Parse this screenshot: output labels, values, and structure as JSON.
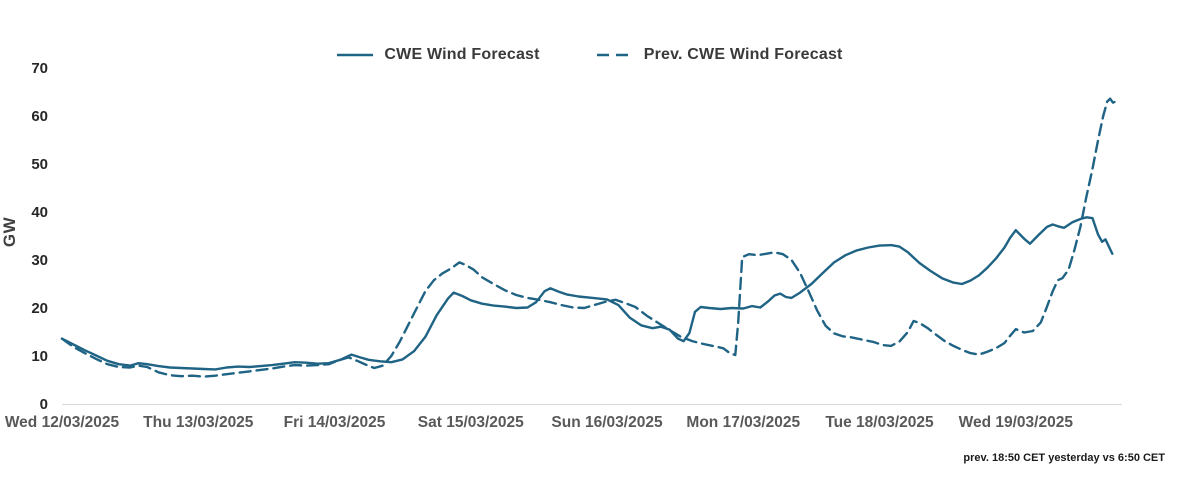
{
  "page": {
    "background": "#ffffff",
    "accent_line_color": "#1f6385"
  },
  "footer": {
    "note": "prev. 18:50 CET yesterday vs  6:50 CET"
  },
  "chart_data": {
    "type": "line",
    "title": "",
    "xlabel": "",
    "ylabel": "GW",
    "ylim": [
      0,
      70
    ],
    "yticks": [
      0,
      10,
      20,
      30,
      40,
      50,
      60,
      70
    ],
    "grid": false,
    "legend_position": "top-center",
    "x_unit": "hours from Wed 12/03/2025 00:00",
    "xlim": [
      0,
      186
    ],
    "x_tick_hours": [
      0,
      24,
      48,
      72,
      96,
      120,
      144,
      168
    ],
    "x_tick_labels": [
      "Wed 12/03/2025",
      "Thu 13/03/2025",
      "Fri 14/03/2025",
      "Sat 15/03/2025",
      "Sun 16/03/2025",
      "Mon 17/03/2025",
      "Tue 18/03/2025",
      "Wed 19/03/2025"
    ],
    "series": [
      {
        "id": "cwe-wind-forecast",
        "name": "CWE Wind Forecast",
        "style": "solid",
        "color": "#1f6385",
        "points": [
          [
            0,
            13.6
          ],
          [
            2,
            12.4
          ],
          [
            4,
            11.2
          ],
          [
            6,
            10.1
          ],
          [
            8,
            9.0
          ],
          [
            10,
            8.3
          ],
          [
            12,
            8.0
          ],
          [
            13.5,
            8.5
          ],
          [
            15,
            8.3
          ],
          [
            17,
            7.9
          ],
          [
            19,
            7.6
          ],
          [
            21,
            7.5
          ],
          [
            23,
            7.4
          ],
          [
            25,
            7.3
          ],
          [
            27,
            7.2
          ],
          [
            29,
            7.6
          ],
          [
            31,
            7.8
          ],
          [
            33,
            7.7
          ],
          [
            35,
            7.9
          ],
          [
            37,
            8.1
          ],
          [
            39,
            8.4
          ],
          [
            41,
            8.7
          ],
          [
            43,
            8.6
          ],
          [
            45,
            8.4
          ],
          [
            47,
            8.5
          ],
          [
            49,
            9.2
          ],
          [
            51,
            10.3
          ],
          [
            52.5,
            9.7
          ],
          [
            54,
            9.2
          ],
          [
            56,
            8.9
          ],
          [
            58,
            8.7
          ],
          [
            60,
            9.3
          ],
          [
            62,
            11.0
          ],
          [
            64,
            14.0
          ],
          [
            66,
            18.5
          ],
          [
            68,
            22.0
          ],
          [
            69,
            23.2
          ],
          [
            70.5,
            22.5
          ],
          [
            72,
            21.6
          ],
          [
            74,
            20.9
          ],
          [
            76,
            20.5
          ],
          [
            78,
            20.3
          ],
          [
            80,
            20.0
          ],
          [
            82,
            20.1
          ],
          [
            83.5,
            21.2
          ],
          [
            85,
            23.5
          ],
          [
            86,
            24.1
          ],
          [
            87.5,
            23.4
          ],
          [
            89,
            22.8
          ],
          [
            91,
            22.4
          ],
          [
            93.5,
            22.1
          ],
          [
            96,
            21.8
          ],
          [
            98,
            20.6
          ],
          [
            100,
            18.0
          ],
          [
            102,
            16.4
          ],
          [
            104,
            15.8
          ],
          [
            105.5,
            16.1
          ],
          [
            107,
            15.5
          ],
          [
            108.5,
            13.6
          ],
          [
            109.5,
            13.1
          ],
          [
            110.5,
            14.8
          ],
          [
            111.5,
            19.2
          ],
          [
            112.5,
            20.2
          ],
          [
            114,
            20.0
          ],
          [
            116,
            19.8
          ],
          [
            118,
            20.0
          ],
          [
            120,
            19.9
          ],
          [
            121.5,
            20.4
          ],
          [
            123,
            20.1
          ],
          [
            124.5,
            21.5
          ],
          [
            125.5,
            22.6
          ],
          [
            126.5,
            23.0
          ],
          [
            127.5,
            22.3
          ],
          [
            128.5,
            22.1
          ],
          [
            130,
            23.2
          ],
          [
            132,
            25.0
          ],
          [
            134,
            27.3
          ],
          [
            136,
            29.5
          ],
          [
            138,
            31.0
          ],
          [
            140,
            32.0
          ],
          [
            142,
            32.6
          ],
          [
            144,
            33.0
          ],
          [
            146,
            33.1
          ],
          [
            147.5,
            32.8
          ],
          [
            149,
            31.6
          ],
          [
            151,
            29.4
          ],
          [
            153,
            27.7
          ],
          [
            155,
            26.2
          ],
          [
            157,
            25.3
          ],
          [
            158.5,
            25.0
          ],
          [
            160,
            25.7
          ],
          [
            161.5,
            26.8
          ],
          [
            163,
            28.4
          ],
          [
            164.5,
            30.3
          ],
          [
            166,
            32.6
          ],
          [
            167,
            34.6
          ],
          [
            168,
            36.2
          ],
          [
            169.5,
            34.4
          ],
          [
            170.5,
            33.4
          ],
          [
            172,
            35.2
          ],
          [
            173.5,
            36.9
          ],
          [
            174.5,
            37.4
          ],
          [
            175.5,
            37.0
          ],
          [
            176.5,
            36.7
          ],
          [
            178,
            37.9
          ],
          [
            179.5,
            38.6
          ],
          [
            180.5,
            38.9
          ],
          [
            181.5,
            38.7
          ],
          [
            182.5,
            35.3
          ],
          [
            183.2,
            33.8
          ],
          [
            183.8,
            34.3
          ],
          [
            184.4,
            32.8
          ],
          [
            185,
            31.3
          ]
        ]
      },
      {
        "id": "prev-cwe-wind-forecast",
        "name": "Prev. CWE Wind Forecast",
        "style": "dashed",
        "color": "#1f6385",
        "points": [
          [
            0,
            13.6
          ],
          [
            2,
            11.9
          ],
          [
            4,
            10.6
          ],
          [
            6,
            9.4
          ],
          [
            8,
            8.3
          ],
          [
            10,
            7.7
          ],
          [
            12,
            7.6
          ],
          [
            13.5,
            8.0
          ],
          [
            15,
            7.7
          ],
          [
            17,
            6.6
          ],
          [
            19,
            6.0
          ],
          [
            21,
            5.8
          ],
          [
            23,
            5.9
          ],
          [
            25,
            5.7
          ],
          [
            27,
            5.9
          ],
          [
            29,
            6.2
          ],
          [
            31,
            6.5
          ],
          [
            33,
            6.8
          ],
          [
            35,
            7.1
          ],
          [
            37,
            7.4
          ],
          [
            39,
            7.8
          ],
          [
            41,
            8.1
          ],
          [
            43,
            8.0
          ],
          [
            45,
            8.1
          ],
          [
            47,
            8.3
          ],
          [
            49,
            9.2
          ],
          [
            50.5,
            9.7
          ],
          [
            52,
            9.0
          ],
          [
            53.5,
            8.2
          ],
          [
            55,
            7.5
          ],
          [
            56.5,
            8.0
          ],
          [
            58,
            10.0
          ],
          [
            59.5,
            13.0
          ],
          [
            61,
            16.5
          ],
          [
            62.5,
            20.0
          ],
          [
            64,
            23.5
          ],
          [
            65.5,
            25.8
          ],
          [
            67,
            27.2
          ],
          [
            68.5,
            28.2
          ],
          [
            70,
            29.5
          ],
          [
            71,
            29.0
          ],
          [
            72.5,
            28.0
          ],
          [
            74,
            26.4
          ],
          [
            76,
            25.0
          ],
          [
            78,
            23.7
          ],
          [
            80,
            22.7
          ],
          [
            82,
            22.1
          ],
          [
            84,
            21.7
          ],
          [
            86,
            21.2
          ],
          [
            88,
            20.6
          ],
          [
            90,
            20.1
          ],
          [
            92,
            20.0
          ],
          [
            94,
            20.7
          ],
          [
            96,
            21.4
          ],
          [
            97.5,
            21.7
          ],
          [
            99,
            21.1
          ],
          [
            101,
            20.2
          ],
          [
            103,
            18.4
          ],
          [
            105,
            16.9
          ],
          [
            107,
            15.4
          ],
          [
            109,
            14.0
          ],
          [
            111,
            13.1
          ],
          [
            113,
            12.5
          ],
          [
            115,
            12.0
          ],
          [
            116.5,
            11.6
          ],
          [
            117.6,
            10.6
          ],
          [
            118.6,
            10.2
          ],
          [
            119.1,
            17.0
          ],
          [
            119.8,
            30.6
          ],
          [
            121,
            31.2
          ],
          [
            122.5,
            31.0
          ],
          [
            124,
            31.3
          ],
          [
            125.5,
            31.6
          ],
          [
            127,
            31.2
          ],
          [
            128.5,
            30.0
          ],
          [
            130,
            27.3
          ],
          [
            131.5,
            23.5
          ],
          [
            133,
            19.5
          ],
          [
            134.5,
            16.3
          ],
          [
            136,
            14.7
          ],
          [
            137.5,
            14.1
          ],
          [
            139,
            13.9
          ],
          [
            141,
            13.4
          ],
          [
            143,
            12.9
          ],
          [
            144.5,
            12.3
          ],
          [
            146,
            12.1
          ],
          [
            147.5,
            13.0
          ],
          [
            149,
            15.0
          ],
          [
            150,
            17.3
          ],
          [
            151,
            16.9
          ],
          [
            152.5,
            15.8
          ],
          [
            154,
            14.4
          ],
          [
            155.5,
            13.1
          ],
          [
            157,
            12.1
          ],
          [
            158.5,
            11.3
          ],
          [
            160,
            10.6
          ],
          [
            161.5,
            10.3
          ],
          [
            163,
            10.9
          ],
          [
            164.5,
            11.6
          ],
          [
            166,
            12.7
          ],
          [
            167,
            14.2
          ],
          [
            168,
            15.6
          ],
          [
            169.5,
            14.9
          ],
          [
            171,
            15.2
          ],
          [
            172.4,
            17.0
          ],
          [
            173.4,
            20.0
          ],
          [
            174.5,
            23.5
          ],
          [
            175.4,
            25.8
          ],
          [
            176.2,
            26.2
          ],
          [
            177.3,
            28.0
          ],
          [
            178.3,
            32.0
          ],
          [
            179.4,
            37.0
          ],
          [
            180.4,
            43.0
          ],
          [
            181.5,
            49.0
          ],
          [
            182.5,
            55.0
          ],
          [
            183.4,
            60.0
          ],
          [
            184.1,
            63.0
          ],
          [
            184.6,
            63.6
          ],
          [
            185.1,
            62.8
          ],
          [
            185.6,
            63.0
          ]
        ]
      }
    ]
  }
}
